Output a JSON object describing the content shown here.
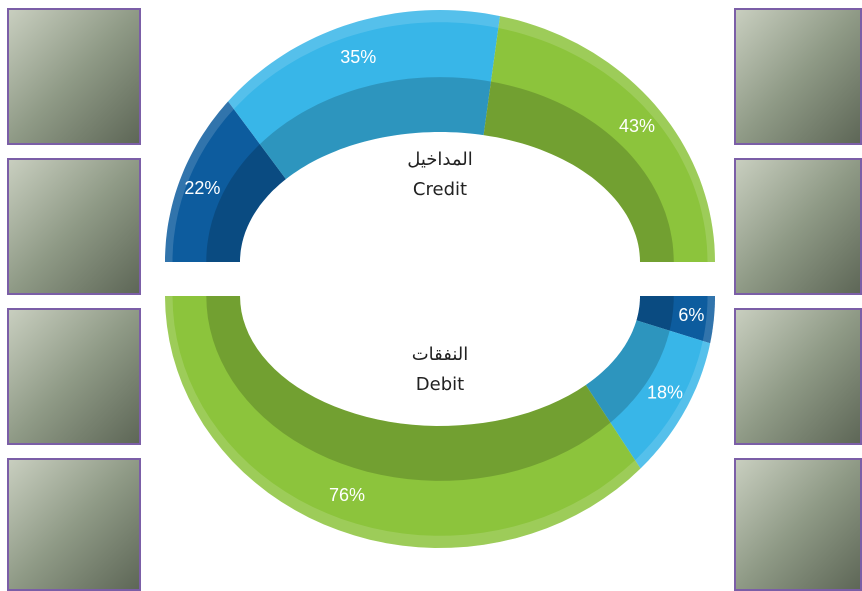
{
  "chart_data": [
    {
      "type": "donut",
      "title": "المداخيل",
      "subtitle": "Credit",
      "values": [
        22,
        35,
        43
      ],
      "value_labels": [
        "22%",
        "35%",
        "43%"
      ],
      "colors": [
        "#0d5c9e",
        "#38b6e8",
        "#8cc43c"
      ]
    },
    {
      "type": "donut",
      "title": "النفقات",
      "subtitle": "Debit",
      "values": [
        6,
        18,
        76
      ],
      "value_labels": [
        "6%",
        "18%",
        "76%"
      ],
      "colors": [
        "#0d5c9e",
        "#38b6e8",
        "#8cc43c"
      ]
    }
  ]
}
